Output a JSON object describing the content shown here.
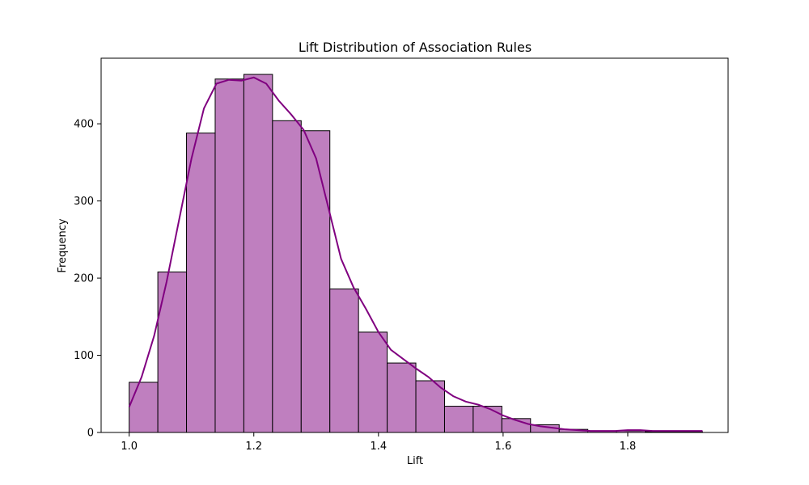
{
  "chart_data": {
    "type": "bar",
    "title": "Lift Distribution of Association Rules",
    "xlabel": "Lift",
    "ylabel": "Frequency",
    "xlim": [
      0.955,
      1.961
    ],
    "ylim": [
      0,
      485
    ],
    "xticks": [
      1.0,
      1.2,
      1.4,
      1.6,
      1.8
    ],
    "xtick_labels": [
      "1.0",
      "1.2",
      "1.4",
      "1.6",
      "1.8"
    ],
    "yticks": [
      0,
      100,
      200,
      300,
      400
    ],
    "ytick_labels": [
      "0",
      "100",
      "200",
      "300",
      "400"
    ],
    "grid": false,
    "legend": "none",
    "bar_color": "#bf7fbf",
    "edge_color": "#000000",
    "kde_color": "#800080",
    "bins": [
      {
        "x0": 1.0,
        "x1": 1.046,
        "count": 65
      },
      {
        "x0": 1.046,
        "x1": 1.092,
        "count": 208
      },
      {
        "x0": 1.092,
        "x1": 1.138,
        "count": 388
      },
      {
        "x0": 1.138,
        "x1": 1.184,
        "count": 458
      },
      {
        "x0": 1.184,
        "x1": 1.23,
        "count": 464
      },
      {
        "x0": 1.23,
        "x1": 1.276,
        "count": 404
      },
      {
        "x0": 1.276,
        "x1": 1.322,
        "count": 391
      },
      {
        "x0": 1.322,
        "x1": 1.368,
        "count": 186
      },
      {
        "x0": 1.368,
        "x1": 1.414,
        "count": 130
      },
      {
        "x0": 1.414,
        "x1": 1.46,
        "count": 90
      },
      {
        "x0": 1.46,
        "x1": 1.506,
        "count": 67
      },
      {
        "x0": 1.506,
        "x1": 1.552,
        "count": 34
      },
      {
        "x0": 1.552,
        "x1": 1.598,
        "count": 34
      },
      {
        "x0": 1.598,
        "x1": 1.644,
        "count": 18
      },
      {
        "x0": 1.644,
        "x1": 1.69,
        "count": 10
      },
      {
        "x0": 1.69,
        "x1": 1.736,
        "count": 4
      },
      {
        "x0": 1.736,
        "x1": 1.782,
        "count": 2
      },
      {
        "x0": 1.782,
        "x1": 1.828,
        "count": 2
      },
      {
        "x0": 1.828,
        "x1": 1.874,
        "count": 1
      },
      {
        "x0": 1.874,
        "x1": 1.92,
        "count": 1
      }
    ],
    "kde": {
      "x": [
        1.0,
        1.02,
        1.04,
        1.06,
        1.08,
        1.1,
        1.12,
        1.14,
        1.16,
        1.18,
        1.2,
        1.22,
        1.24,
        1.26,
        1.28,
        1.3,
        1.32,
        1.34,
        1.36,
        1.38,
        1.4,
        1.42,
        1.44,
        1.46,
        1.48,
        1.5,
        1.52,
        1.54,
        1.56,
        1.58,
        1.6,
        1.62,
        1.64,
        1.66,
        1.68,
        1.7,
        1.72,
        1.74,
        1.76,
        1.78,
        1.8,
        1.82,
        1.84,
        1.86,
        1.88,
        1.9,
        1.92
      ],
      "y": [
        33,
        72,
        125,
        195,
        275,
        355,
        420,
        452,
        457,
        456,
        460,
        452,
        430,
        412,
        392,
        355,
        290,
        225,
        188,
        160,
        130,
        107,
        95,
        83,
        72,
        58,
        47,
        40,
        36,
        30,
        22,
        16,
        11,
        8,
        6,
        4,
        3,
        2,
        2,
        2,
        3,
        3,
        2,
        2,
        2,
        2,
        2
      ]
    }
  }
}
